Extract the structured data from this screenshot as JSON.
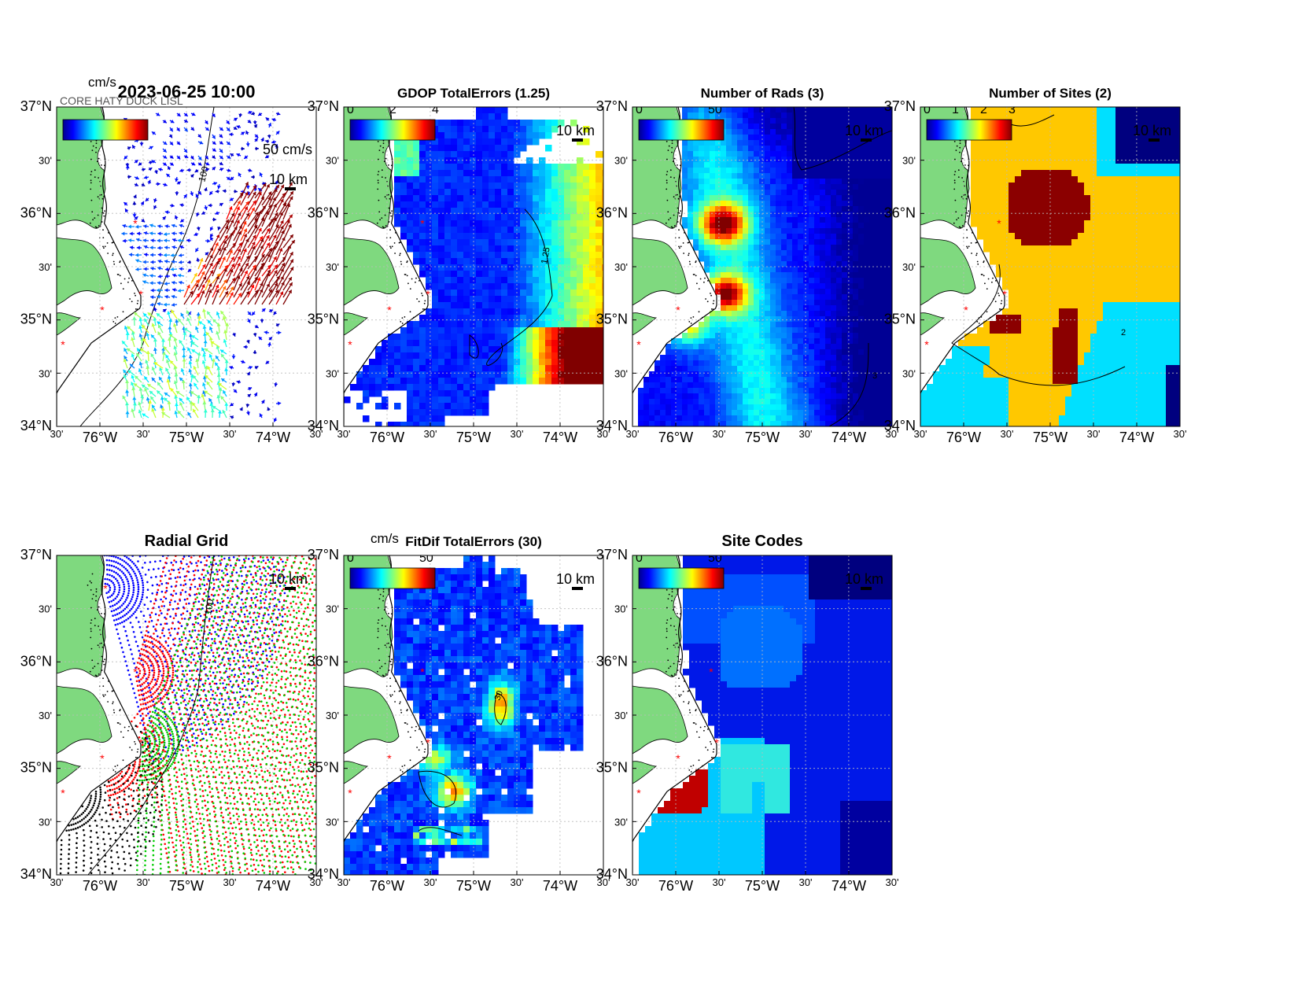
{
  "figure": {
    "lat_ticks": [
      "37°N",
      "30'",
      "36°N",
      "30'",
      "35°N",
      "30'",
      "34°N"
    ],
    "lon_ticks": [
      "30'",
      "76°W",
      "30'",
      "75°W",
      "30'",
      "74°W",
      "30'"
    ],
    "scale_bar": "10 km",
    "colors": {
      "land": "#7fd97f",
      "site_marker": "#ff0000",
      "graticule": "#bbbbbb",
      "ocean_dark": "#00007f",
      "ocean_blue": "#0018e8",
      "cyan": "#00e0ff",
      "orange": "#ffc800",
      "dark_red": "#8b0000"
    }
  },
  "panels": [
    {
      "id": "totals",
      "title": "2023-06-25 10:00",
      "unit": "cm/s",
      "colorbar_ticks": [],
      "overlapped_label": "CORE HATY DUCK LISL",
      "reference_vector": "50 cm/s",
      "contour_label": "100",
      "icons": [
        "vector-field",
        "coastline",
        "site-markers",
        "isobath"
      ]
    },
    {
      "id": "gdop",
      "title": "GDOP TotalErrors (1.25)",
      "unit": "",
      "colorbar_ticks": [
        "0",
        "2",
        "4"
      ],
      "contour_label": "1.25"
    },
    {
      "id": "nrads",
      "title": "Number of Rads (3)",
      "unit": "",
      "colorbar_ticks": [
        "0",
        "50"
      ],
      "contour_label": "3"
    },
    {
      "id": "nsites",
      "title": "Number of Sites (2)",
      "unit": "",
      "colorbar_ticks": [
        "0",
        "1",
        "2",
        "3"
      ],
      "contour_label": "2"
    },
    {
      "id": "radgrid",
      "title": "Radial Grid",
      "unit": "",
      "colorbar_ticks": [],
      "contour_label": "100"
    },
    {
      "id": "fitdif",
      "title": "FitDif TotalErrors (30)",
      "unit": "cm/s",
      "colorbar_ticks": [
        "0",
        "50"
      ],
      "contour_label": "30"
    },
    {
      "id": "sitecodes",
      "title": "Site Codes",
      "unit": "",
      "colorbar_ticks": [
        "0",
        "50"
      ],
      "contour_label": ""
    }
  ]
}
